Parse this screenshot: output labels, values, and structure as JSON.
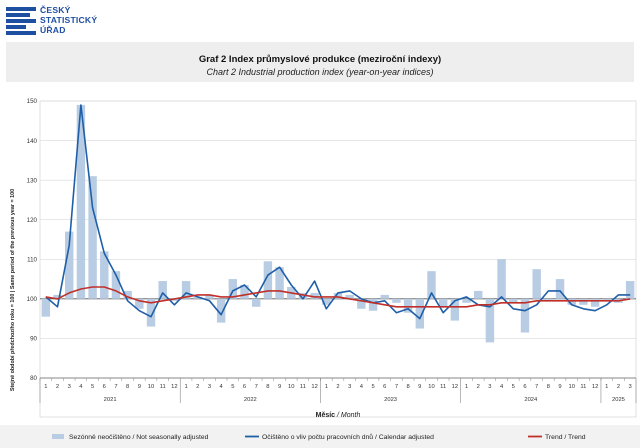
{
  "logo": {
    "line1": "ČESKÝ",
    "line2": "STATISTICKÝ",
    "line3": "ÚŘAD"
  },
  "title": {
    "cz": "Graf 2 Index průmyslové produkce (meziroční indexy)",
    "en": "Chart 2 Industrial production index (year-on-year indices)"
  },
  "chart_data": {
    "type": "bar+line",
    "ylabel": "Stejné období předchozího roku = 100 | Same period of the previous year = 100",
    "xlabel": "Měsíc",
    "xlabel_en": " / Month",
    "ylim": [
      80,
      150
    ],
    "yticks": [
      80,
      90,
      100,
      110,
      120,
      130,
      140,
      150
    ],
    "grid": true,
    "legend_position": "bottom",
    "months": [
      "1",
      "2",
      "3",
      "4",
      "5",
      "6",
      "7",
      "8",
      "9",
      "10",
      "11",
      "12",
      "1",
      "2",
      "3",
      "4",
      "5",
      "6",
      "7",
      "8",
      "9",
      "10",
      "11",
      "12",
      "1",
      "2",
      "3",
      "4",
      "5",
      "6",
      "7",
      "8",
      "9",
      "10",
      "11",
      "12",
      "1",
      "2",
      "3",
      "4",
      "5",
      "6",
      "7",
      "8",
      "9",
      "10",
      "11",
      "12",
      "1",
      "2",
      "3"
    ],
    "years": [
      {
        "label": "2021",
        "start": 0,
        "count": 12
      },
      {
        "label": "2022",
        "start": 12,
        "count": 12
      },
      {
        "label": "2023",
        "start": 24,
        "count": 12
      },
      {
        "label": "2024",
        "start": 36,
        "count": 12
      },
      {
        "label": "2025",
        "start": 48,
        "count": 3
      }
    ],
    "series": [
      {
        "name": "Sezónně neočištěno / Not seasonally adjusted",
        "type": "bar",
        "color": "#b8cce4",
        "values": [
          95.5,
          101.0,
          117.0,
          149.0,
          131.0,
          112.0,
          107.0,
          102.0,
          97.5,
          93.0,
          104.5,
          99.5,
          104.5,
          100.5,
          101.0,
          94.0,
          105.0,
          103.5,
          98.0,
          109.5,
          108.0,
          103.0,
          101.5,
          101.5,
          98.5,
          101.5,
          101.0,
          97.5,
          97.0,
          101.0,
          99.0,
          96.5,
          92.5,
          107.0,
          98.0,
          94.5,
          99.0,
          102.0,
          89.0,
          110.0,
          99.0,
          91.5,
          107.5,
          99.5,
          105.0,
          98.5,
          98.5,
          98.0,
          99.5,
          99.0,
          104.5
        ]
      },
      {
        "name": "Očištěno o vliv počtu pracovních dnů / Calendar adjusted",
        "type": "line",
        "color": "#1f5fa8",
        "values": [
          100.5,
          98.0,
          113.5,
          149.0,
          123.0,
          111.5,
          106.0,
          99.5,
          97.0,
          95.5,
          101.5,
          98.5,
          101.5,
          100.5,
          99.5,
          96.0,
          102.0,
          103.5,
          100.5,
          106.0,
          108.0,
          103.5,
          100.0,
          104.5,
          97.5,
          101.5,
          102.0,
          100.0,
          99.0,
          99.5,
          96.5,
          97.5,
          95.0,
          101.5,
          96.5,
          99.5,
          100.5,
          98.5,
          98.0,
          100.5,
          97.5,
          97.0,
          98.5,
          102.0,
          102.0,
          98.5,
          97.5,
          97.0,
          98.5,
          101.0,
          101.0
        ]
      },
      {
        "name": "Trend / Trend",
        "type": "line",
        "color": "#c0302a",
        "values": [
          100.5,
          100.0,
          101.5,
          102.5,
          103.0,
          103.0,
          102.0,
          100.5,
          99.5,
          99.0,
          99.5,
          100.0,
          100.5,
          101.0,
          101.0,
          100.5,
          100.5,
          101.0,
          101.5,
          102.0,
          102.0,
          101.5,
          101.0,
          100.5,
          100.5,
          100.5,
          100.0,
          99.5,
          99.0,
          98.5,
          98.0,
          98.0,
          98.0,
          98.0,
          98.0,
          98.0,
          98.0,
          98.5,
          98.5,
          99.0,
          99.0,
          99.0,
          99.5,
          99.5,
          99.5,
          99.5,
          99.5,
          99.5,
          99.5,
          99.5,
          100.0
        ]
      }
    ]
  }
}
